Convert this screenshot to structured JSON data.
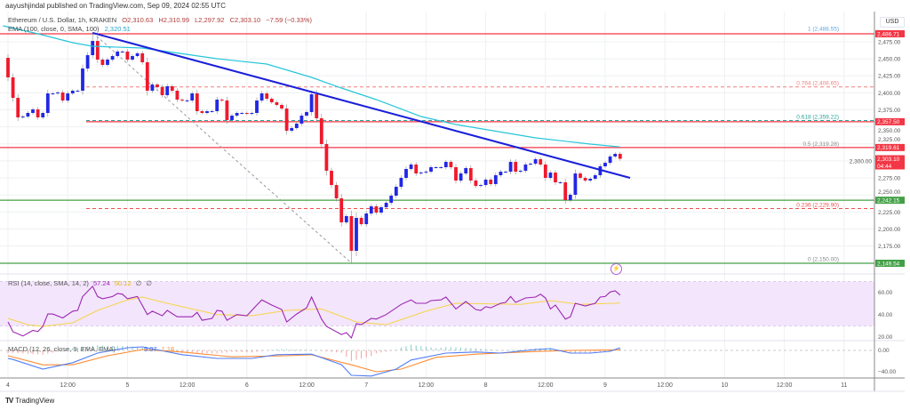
{
  "published": "aayushjindal published on TradingView.com, Sep 09, 2024 02:55 UTC",
  "legend": {
    "symbol": "Ethereum / U.S. Dollar, 1h, KRAKEN",
    "ohlc": [
      {
        "label": "O",
        "value": "2,310.63"
      },
      {
        "label": "H",
        "value": "2,310.99"
      },
      {
        "label": "L",
        "value": "2,297.92"
      },
      {
        "label": "C",
        "value": "2,303.10"
      }
    ],
    "change": "−7.59 (−0.33%)",
    "ema_label": "EMA (100, close, 0, SMA, 100)",
    "ema_value": "2,320.51"
  },
  "price_axis": {
    "currency": "USD",
    "ticks": [
      "2,475.00",
      "2,450.00",
      "2,425.00",
      "2,400.00",
      "2,375.00",
      "2,350.00",
      "2,325.00",
      "2,300.00",
      "2,275.00",
      "2,250.00",
      "2,225.00",
      "2,200.00",
      "2,175.00"
    ]
  },
  "price_tags": [
    {
      "value": "2,486.71",
      "color": "#f23645"
    },
    {
      "value": "2,357.50",
      "color": "#f23645"
    },
    {
      "value": "2,319.61",
      "color": "#f23645"
    },
    {
      "value": "2,242.15",
      "color": "#43a047"
    },
    {
      "value": "2,149.54",
      "color": "#43a047"
    }
  ],
  "current_price": {
    "value": "2,303.10",
    "countdown": "04:44",
    "color": "#f23645"
  },
  "horizontal_lines": [
    {
      "price": 2486.71,
      "color": "#f23645",
      "from": "full"
    },
    {
      "price": 2357.5,
      "color": "#f23645",
      "from": "fib"
    },
    {
      "price": 2319.61,
      "color": "#f23645",
      "from": "full"
    },
    {
      "price": 2242.15,
      "color": "#43a047",
      "from": "full"
    },
    {
      "price": 2149.54,
      "color": "#43a047",
      "from": "full"
    }
  ],
  "fib_levels": [
    {
      "label": "1 (2,488.55)",
      "price": 2488.55,
      "color": "#5fa8e0",
      "line": false
    },
    {
      "label": "0.764 (2,408.65)",
      "price": 2408.65,
      "color": "#f08080",
      "line": true
    },
    {
      "label": "0.618 (2,359.22)",
      "price": 2359.22,
      "color": "#26a69a",
      "line": true
    },
    {
      "label": "0.5 (2,319.28)",
      "price": 2319.28,
      "color": "#888888",
      "line": false
    },
    {
      "label": "0.236 (2,229.90)",
      "price": 2229.9,
      "color": "#f05050",
      "line": true
    },
    {
      "label": "0 (2,150.00)",
      "price": 2150.0,
      "color": "#888888",
      "line": false
    }
  ],
  "time_axis": [
    "4",
    "12:00",
    "5",
    "12:00",
    "6",
    "12:00",
    "7",
    "12:00",
    "8",
    "12:00",
    "9",
    "12:00",
    "10",
    "12:00",
    "11"
  ],
  "rsi": {
    "label": "RSI (14, close, SMA, 14, 2)",
    "value": "57.24",
    "sma_value": "50.12",
    "extra": [
      "∅",
      "∅"
    ],
    "ticks": [
      "60.00",
      "40.00",
      "20.00"
    ],
    "colors": {
      "rsi": "#9c27b0",
      "sma": "#f5d547",
      "band": "#f3e5fc"
    }
  },
  "macd": {
    "label": "MACD (12, 26, close, 9, EMA, EMA)",
    "macd_value": "5.07",
    "signal_value": "1.16",
    "ticks": [
      "0.00",
      "−40.00"
    ],
    "colors": {
      "macd": "#4f7df5",
      "signal": "#ff8c33",
      "hist_up": "#26a69a",
      "hist_down": "#ef5350"
    }
  },
  "footer": {
    "brand": "TradingView"
  },
  "colors": {
    "up": "#2127e6",
    "down": "#f0192c",
    "ema": "#26c6da",
    "trendline": "#1a1fd9"
  },
  "chart_data": {
    "type": "candlestick",
    "title": "Ethereum / U.S. Dollar, 1h, KRAKEN",
    "interval": "1h",
    "start": "09-04 00:00",
    "first_open": 2451.4,
    "close": [
      2422.7,
      2392.6,
      2363.9,
      2365.2,
      2370.4,
      2375.6,
      2363.9,
      2370.4,
      2399.1,
      2399.1,
      2400.5,
      2388.7,
      2399.1,
      2403.1,
      2403.1,
      2435.7,
      2455.3,
      2476.2,
      2448.8,
      2441.0,
      2448.8,
      2454.0,
      2460.6,
      2460.6,
      2448.8,
      2454.0,
      2458.0,
      2444.9,
      2403.1,
      2412.2,
      2408.3,
      2396.5,
      2409.6,
      2403.1,
      2390.0,
      2388.7,
      2388.7,
      2399.1,
      2373.0,
      2370.4,
      2373.0,
      2373.0,
      2390.0,
      2388.7,
      2359.9,
      2366.5,
      2370.4,
      2370.4,
      2369.1,
      2370.4,
      2388.7,
      2399.1,
      2391.3,
      2386.1,
      2382.2,
      2376.9,
      2344.3,
      2348.2,
      2354.7,
      2366.5,
      2371.7,
      2397.8,
      2362.6,
      2324.7,
      2285.5,
      2264.5,
      2244.9,
      2209.7,
      2218.8,
      2167.8,
      2216.2,
      2207.0,
      2222.7,
      2233.2,
      2224.0,
      2231.9,
      2238.4,
      2248.9,
      2261.9,
      2275.0,
      2288.1,
      2294.6,
      2281.5,
      2282.8,
      2284.1,
      2290.7,
      2290.7,
      2290.7,
      2298.5,
      2290.7,
      2271.1,
      2281.5,
      2289.4,
      2271.1,
      2263.2,
      2264.5,
      2272.4,
      2265.9,
      2278.9,
      2284.1,
      2284.1,
      2298.5,
      2284.1,
      2285.5,
      2294.6,
      2295.9,
      2302.4,
      2294.6,
      2275.0,
      2282.8,
      2268.5,
      2268.5,
      2242.3,
      2250.2,
      2281.5,
      2275.0,
      2271.1,
      2273.7,
      2278.9,
      2292.0,
      2297.2,
      2306.4,
      2310.3,
      2303.1
    ],
    "swing_high": 2488.55,
    "swing_low": 2150.0,
    "ylim": [
      2140,
      2500
    ],
    "ema100": [
      [
        "09-03 23:00",
        2498.5
      ],
      [
        "09-04 06:00",
        2486.7
      ],
      [
        "09-04 13:00",
        2473.6
      ],
      [
        "09-04 17:00",
        2468.4
      ],
      [
        "09-05 03:00",
        2465.8
      ],
      [
        "09-05 18:00",
        2450.1
      ],
      [
        "09-06 04:00",
        2442.3
      ],
      [
        "09-06 13:00",
        2422.7
      ],
      [
        "09-06 19:00",
        2407.0
      ],
      [
        "09-07 02:00",
        2390.0
      ],
      [
        "09-07 11:00",
        2365.2
      ],
      [
        "09-07 18:00",
        2353.4
      ],
      [
        "09-08 10:00",
        2333.8
      ],
      [
        "09-08 21:00",
        2324.7
      ],
      [
        "09-09 03:00",
        2320.5
      ]
    ],
    "trendline": [
      [
        "09-04 17:00",
        2488.1
      ],
      [
        "09-09 05:00",
        2275.0
      ]
    ],
    "fib_anchor": [
      [
        "09-04 17:00",
        2488.55
      ],
      [
        "09-06 21:00",
        2150.0
      ]
    ],
    "rsi": [
      [
        "09-04 00:00",
        33.5
      ],
      [
        "09-04 01:00",
        24.8
      ],
      [
        "09-04 03:00",
        21
      ],
      [
        "09-04 05:00",
        26
      ],
      [
        "09-04 06:00",
        25
      ],
      [
        "09-04 07:00",
        29.5
      ],
      [
        "09-04 08:00",
        40.5
      ],
      [
        "09-04 09:00",
        40.5
      ],
      [
        "09-04 11:00",
        37
      ],
      [
        "09-04 13:00",
        43
      ],
      [
        "09-04 14:00",
        43.7
      ],
      [
        "09-04 15:00",
        56
      ],
      [
        "09-04 17:00",
        65
      ],
      [
        "09-04 18:00",
        56
      ],
      [
        "09-04 19:00",
        54
      ],
      [
        "09-04 21:00",
        56
      ],
      [
        "09-04 22:00",
        58.7
      ],
      [
        "09-04 23:00",
        58
      ],
      [
        "09-05 00:00",
        54
      ],
      [
        "09-05 02:00",
        56
      ],
      [
        "09-05 04:00",
        40
      ],
      [
        "09-05 05:00",
        43
      ],
      [
        "09-05 07:00",
        39
      ],
      [
        "09-05 08:00",
        43.7
      ],
      [
        "09-05 10:00",
        38
      ],
      [
        "09-05 13:00",
        38
      ],
      [
        "09-05 14:00",
        42
      ],
      [
        "09-05 15:00",
        35
      ],
      [
        "09-05 17:00",
        36.6
      ],
      [
        "09-05 18:00",
        43.7
      ],
      [
        "09-05 19:00",
        43
      ],
      [
        "09-05 20:00",
        35
      ],
      [
        "09-05 22:00",
        40
      ],
      [
        "09-06 00:00",
        39
      ],
      [
        "09-06 02:00",
        48.4
      ],
      [
        "09-06 03:00",
        53
      ],
      [
        "09-06 05:00",
        48.4
      ],
      [
        "09-06 07:00",
        44.5
      ],
      [
        "09-06 08:00",
        33.5
      ],
      [
        "09-06 10:00",
        40.5
      ],
      [
        "09-06 12:00",
        46
      ],
      [
        "09-06 13:00",
        55.5
      ],
      [
        "09-06 15:00",
        36
      ],
      [
        "09-06 16:00",
        29.5
      ],
      [
        "09-06 19:00",
        22.4
      ],
      [
        "09-06 20:00",
        24
      ],
      [
        "09-06 21:00",
        19.3
      ],
      [
        "09-06 22:00",
        32
      ],
      [
        "09-06 23:00",
        31
      ],
      [
        "09-07 01:00",
        36.6
      ],
      [
        "09-07 02:00",
        36
      ],
      [
        "09-07 04:00",
        40
      ],
      [
        "09-07 07:00",
        49
      ],
      [
        "09-07 09:00",
        53
      ],
      [
        "09-07 10:00",
        50
      ],
      [
        "09-07 12:00",
        50
      ],
      [
        "09-07 13:00",
        52.4
      ],
      [
        "09-07 15:00",
        53
      ],
      [
        "09-07 16:00",
        55.5
      ],
      [
        "09-07 18:00",
        45
      ],
      [
        "09-07 20:00",
        51.6
      ],
      [
        "09-07 22:00",
        44.5
      ],
      [
        "09-07 23:00",
        43.7
      ],
      [
        "09-08 00:00",
        47
      ],
      [
        "09-08 01:00",
        46
      ],
      [
        "09-08 03:00",
        50
      ],
      [
        "09-08 04:00",
        50.8
      ],
      [
        "09-08 05:00",
        56
      ],
      [
        "09-08 06:00",
        50.8
      ],
      [
        "09-08 08:00",
        54.7
      ],
      [
        "09-08 10:00",
        55.5
      ],
      [
        "09-08 11:00",
        58
      ],
      [
        "09-08 12:00",
        54.7
      ],
      [
        "09-08 13:00",
        45
      ],
      [
        "09-08 14:00",
        48.4
      ],
      [
        "09-08 16:00",
        36
      ],
      [
        "09-08 17:00",
        38
      ],
      [
        "09-08 18:00",
        50
      ],
      [
        "09-08 20:00",
        47.6
      ],
      [
        "09-08 22:00",
        50
      ],
      [
        "09-08 23:00",
        55.5
      ],
      [
        "09-09 00:00",
        56
      ],
      [
        "09-09 01:00",
        60
      ],
      [
        "09-09 02:00",
        61
      ],
      [
        "09-09 03:00",
        57.24
      ]
    ],
    "rsi_sma": [
      [
        "09-04 00:00",
        36.6
      ],
      [
        "09-04 04:00",
        31
      ],
      [
        "09-04 07:00",
        29.5
      ],
      [
        "09-04 13:00",
        32.7
      ],
      [
        "09-04 18:00",
        43.7
      ],
      [
        "09-05 00:00",
        53
      ],
      [
        "09-05 03:00",
        55.5
      ],
      [
        "09-05 08:00",
        50
      ],
      [
        "09-05 18:00",
        40
      ],
      [
        "09-06 01:00",
        39
      ],
      [
        "09-06 08:00",
        43.7
      ],
      [
        "09-06 15:00",
        45
      ],
      [
        "09-06 22:00",
        33.5
      ],
      [
        "09-07 04:00",
        31
      ],
      [
        "09-07 12:00",
        43
      ],
      [
        "09-07 18:00",
        50
      ],
      [
        "09-08 07:00",
        49
      ],
      [
        "09-08 13:00",
        52.4
      ],
      [
        "09-08 19:00",
        49
      ],
      [
        "09-09 03:00",
        50.12
      ]
    ],
    "rsi_ylim": [
      0,
      100
    ],
    "macd_line": [
      [
        "09-04 00:00",
        -15
      ],
      [
        "09-04 01:00",
        -17
      ],
      [
        "09-04 07:00",
        -35
      ],
      [
        "09-04 13:00",
        -23
      ],
      [
        "09-04 18:00",
        -5
      ],
      [
        "09-05 00:00",
        5
      ],
      [
        "09-05 03:00",
        6.7
      ],
      [
        "09-05 11:00",
        -8
      ],
      [
        "09-05 18:00",
        -15
      ],
      [
        "09-06 01:00",
        -15
      ],
      [
        "09-06 06:00",
        -8
      ],
      [
        "09-06 13:00",
        -7
      ],
      [
        "09-06 19:00",
        -26.7
      ],
      [
        "09-06 21:00",
        -46.7
      ],
      [
        "09-07 01:00",
        -48
      ],
      [
        "09-07 06:00",
        -35
      ],
      [
        "09-07 09:00",
        -18
      ],
      [
        "09-07 16:00",
        -5
      ],
      [
        "09-07 22:00",
        -3
      ],
      [
        "09-08 03:00",
        -5
      ],
      [
        "09-08 10:00",
        1.7
      ],
      [
        "09-08 13:00",
        3.3
      ],
      [
        "09-08 17:00",
        -5
      ],
      [
        "09-08 21:00",
        -5
      ],
      [
        "09-09 01:00",
        -1.7
      ],
      [
        "09-09 03:00",
        5.07
      ]
    ],
    "macd_signal": [
      [
        "09-04 00:00",
        -10
      ],
      [
        "09-04 07:00",
        -27
      ],
      [
        "09-04 13:00",
        -27
      ],
      [
        "09-04 20:00",
        -10
      ],
      [
        "09-05 03:00",
        1.7
      ],
      [
        "09-05 11:00",
        -3
      ],
      [
        "09-05 21:00",
        -12
      ],
      [
        "09-06 08:00",
        -10
      ],
      [
        "09-06 13:00",
        -8
      ],
      [
        "09-06 21:00",
        -27
      ],
      [
        "09-07 02:00",
        -40
      ],
      [
        "09-07 07:00",
        -35
      ],
      [
        "09-07 14:00",
        -13
      ],
      [
        "09-07 22:00",
        -7
      ],
      [
        "09-08 10:00",
        -2
      ],
      [
        "09-08 17:00",
        0
      ],
      [
        "09-09 03:00",
        1.16
      ]
    ]
  }
}
